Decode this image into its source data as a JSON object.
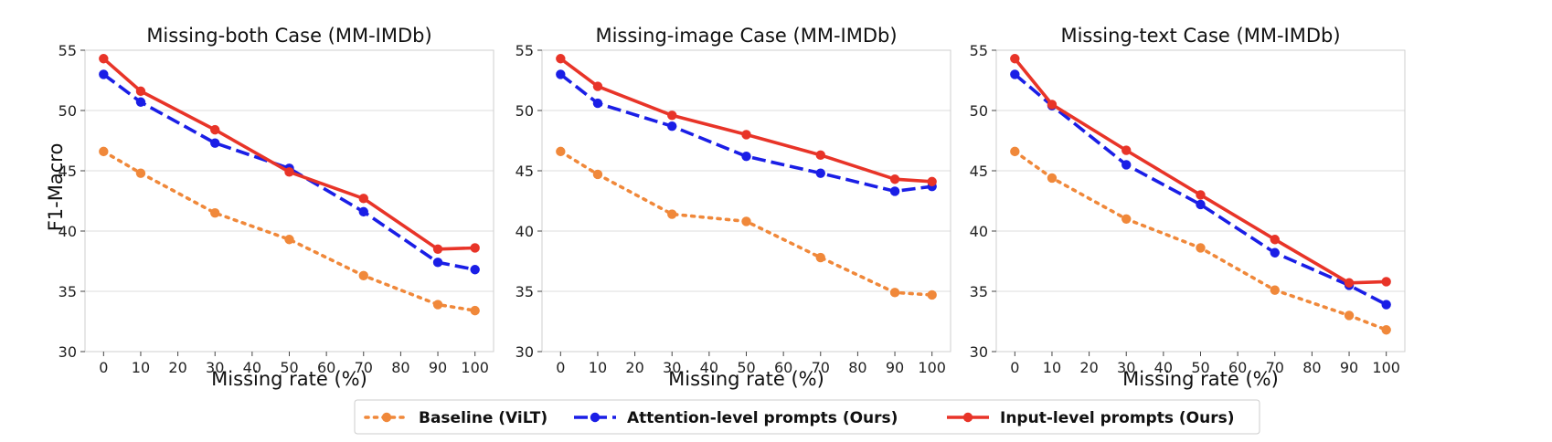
{
  "figure": {
    "ylabel": "F1-Macro",
    "legend_location": "bottom-center"
  },
  "legend": [
    {
      "label": "Baseline (ViLT)",
      "color": "#f0883a",
      "dash": "dotted"
    },
    {
      "label": "Attention-level prompts (Ours)",
      "color": "#1a1ee6",
      "dash": "dashed"
    },
    {
      "label": "Input-level prompts (Ours)",
      "color": "#e83428",
      "dash": "solid"
    }
  ],
  "chart_data": [
    {
      "type": "line",
      "title": "Missing-both Case (MM-IMDb)",
      "xlabel": "Missing rate (%)",
      "ylabel": "F1-Macro",
      "xlim": [
        -5,
        105
      ],
      "ylim": [
        30,
        55
      ],
      "xticks": [
        0,
        10,
        20,
        30,
        40,
        50,
        60,
        70,
        80,
        90,
        100
      ],
      "yticks": [
        30,
        35,
        40,
        45,
        50,
        55
      ],
      "grid": "y",
      "x": [
        0,
        10,
        30,
        50,
        70,
        90,
        100
      ],
      "series": [
        {
          "name": "Baseline (ViLT)",
          "values": [
            46.6,
            44.8,
            41.5,
            39.3,
            36.3,
            33.9,
            33.4
          ]
        },
        {
          "name": "Attention-level prompts (Ours)",
          "values": [
            53.0,
            50.7,
            47.3,
            45.2,
            41.6,
            37.4,
            36.8
          ]
        },
        {
          "name": "Input-level prompts (Ours)",
          "values": [
            54.3,
            51.6,
            48.4,
            44.9,
            42.7,
            38.5,
            38.6
          ]
        }
      ]
    },
    {
      "type": "line",
      "title": "Missing-image Case (MM-IMDb)",
      "xlabel": "Missing rate (%)",
      "ylabel": "",
      "xlim": [
        -5,
        105
      ],
      "ylim": [
        30,
        55
      ],
      "xticks": [
        0,
        10,
        20,
        30,
        40,
        50,
        60,
        70,
        80,
        90,
        100
      ],
      "yticks": [
        30,
        35,
        40,
        45,
        50,
        55
      ],
      "grid": "y",
      "x": [
        0,
        10,
        30,
        50,
        70,
        90,
        100
      ],
      "series": [
        {
          "name": "Baseline (ViLT)",
          "values": [
            46.6,
            44.7,
            41.4,
            40.8,
            37.8,
            34.9,
            34.7
          ]
        },
        {
          "name": "Attention-level prompts (Ours)",
          "values": [
            53.0,
            50.6,
            48.7,
            46.2,
            44.8,
            43.3,
            43.7
          ]
        },
        {
          "name": "Input-level prompts (Ours)",
          "values": [
            54.3,
            52.0,
            49.6,
            48.0,
            46.3,
            44.3,
            44.1
          ]
        }
      ]
    },
    {
      "type": "line",
      "title": "Missing-text Case (MM-IMDb)",
      "xlabel": "Missing rate (%)",
      "ylabel": "",
      "xlim": [
        -5,
        105
      ],
      "ylim": [
        30,
        55
      ],
      "xticks": [
        0,
        10,
        20,
        30,
        40,
        50,
        60,
        70,
        80,
        90,
        100
      ],
      "yticks": [
        30,
        35,
        40,
        45,
        50,
        55
      ],
      "grid": "y",
      "x": [
        0,
        10,
        30,
        50,
        70,
        90,
        100
      ],
      "series": [
        {
          "name": "Baseline (ViLT)",
          "values": [
            46.6,
            44.4,
            41.0,
            38.6,
            35.1,
            33.0,
            31.8
          ]
        },
        {
          "name": "Attention-level prompts (Ours)",
          "values": [
            53.0,
            50.4,
            45.5,
            42.2,
            38.2,
            35.5,
            33.9
          ]
        },
        {
          "name": "Input-level prompts (Ours)",
          "values": [
            54.3,
            50.5,
            46.7,
            43.0,
            39.3,
            35.7,
            35.8
          ]
        }
      ]
    }
  ]
}
